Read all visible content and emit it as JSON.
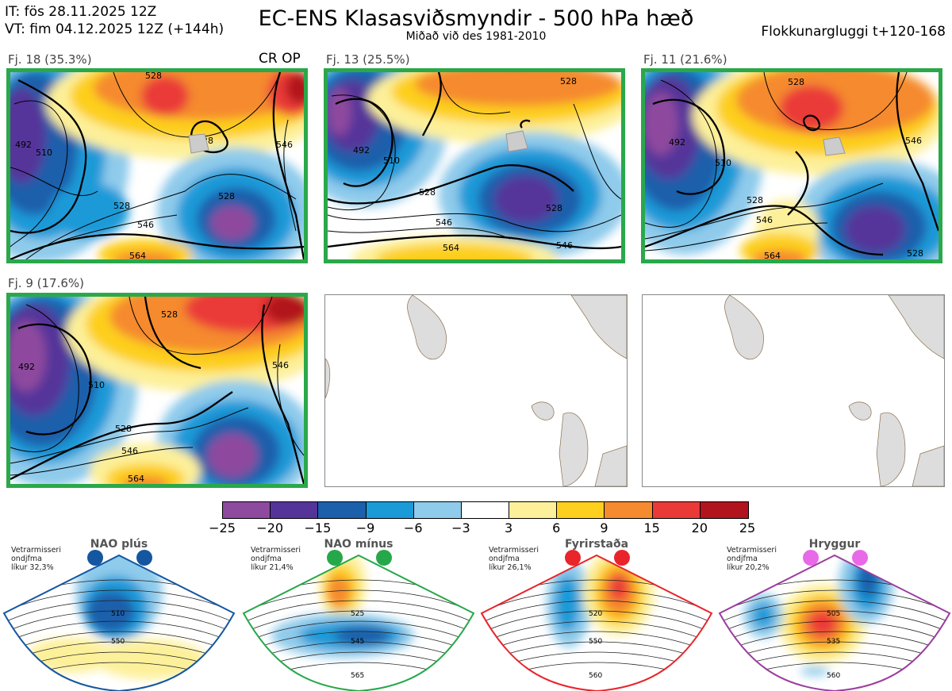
{
  "header": {
    "it": "IT: fös 28.11.2025 12Z",
    "vt": "VT: fim 04.12.2025 12Z  (+144h)",
    "title": "EC-ENS Klasasviðsmyndir - 500 hPa hæð",
    "subtitle": "Miðað við des 1981-2010",
    "window": "Flokkunargluggi t+120-168"
  },
  "panels": [
    {
      "label": "Fj. 18 (35.3%)",
      "tag": "CR OP",
      "contours": [
        "492",
        "510",
        "528",
        "546",
        "564",
        "528",
        "528",
        "546",
        "528"
      ]
    },
    {
      "label": "Fj. 13 (25.5%)",
      "contours": [
        "492",
        "510",
        "528",
        "546",
        "564",
        "528",
        "546",
        "528"
      ]
    },
    {
      "label": "Fj. 11 (21.6%)",
      "contours": [
        "492",
        "510",
        "528",
        "546",
        "564",
        "528",
        "546",
        "528"
      ]
    },
    {
      "label": "Fj. 9 (17.6%)",
      "contours": [
        "492",
        "510",
        "528",
        "546",
        "564",
        "528",
        "546"
      ]
    }
  ],
  "colorbar": {
    "colors": [
      "#8e4a9e",
      "#55349a",
      "#1c5fab",
      "#1b9ad8",
      "#8fcbeb",
      "#ffffff",
      "#fdf09a",
      "#fdcf1f",
      "#f58a2e",
      "#ea3a37",
      "#b2141e"
    ],
    "ticks": [
      "−25",
      "−20",
      "−15",
      "−9",
      "−6",
      "−3",
      "3",
      "6",
      "9",
      "15",
      "20",
      "25"
    ]
  },
  "regimes": [
    {
      "name": "NAO plús",
      "note": [
        "Vetrarmisseri",
        "ondjfma",
        "líkur 32,3%"
      ],
      "color": "#1457a0",
      "contours": [
        "510",
        "550"
      ]
    },
    {
      "name": "NAO mínus",
      "note": [
        "Vetrarmisseri",
        "ondjfma",
        "líkur 21,4%"
      ],
      "color": "#26a84a",
      "contours": [
        "525",
        "545",
        "565"
      ]
    },
    {
      "name": "Fyrirstaða",
      "note": [
        "Vetrarmisseri",
        "ondjfma",
        "líkur 26,1%"
      ],
      "color": "#e8252b",
      "contours": [
        "520",
        "550",
        "560"
      ]
    },
    {
      "name": "Hryggur",
      "note": [
        "Vetrarmisseri",
        "ondjfma",
        "líkur 20,2%"
      ],
      "color": "#9b3d9e",
      "contours": [
        "505",
        "535",
        "560"
      ]
    }
  ]
}
